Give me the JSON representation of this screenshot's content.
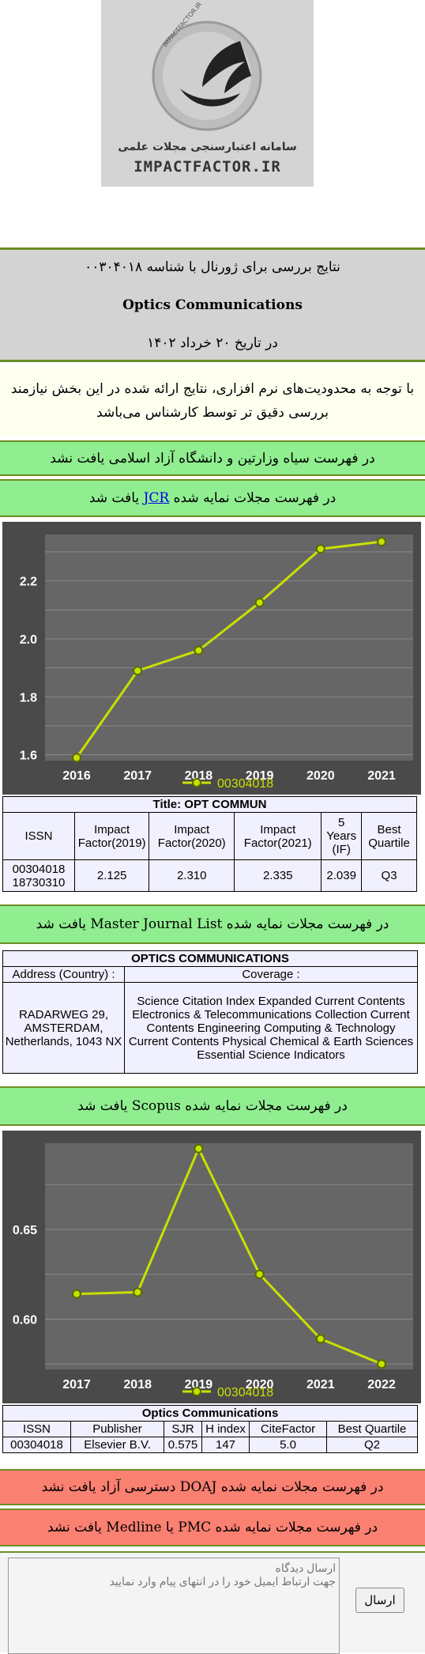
{
  "logo": {
    "circle_text": "IMPACTFACTOR.IR",
    "title": "سامانه اعتبارسنجی مجلات علمی",
    "subtitle": "IMPACTFACTOR.IR"
  },
  "header": {
    "line1": "نتایج بررسی برای ژورنال با شناسه ۰۰۳۰۴۰۱۸",
    "journal_name": "Optics Communications",
    "date_line": "در تاریخ ۲۰ خرداد ۱۴۰۲"
  },
  "warning": "با توجه به محدودیت‌های نرم افزاری، نتایج ارائه شده در این بخش نیازمند بررسی دقیق تر توسط کارشناس می‌باشد",
  "blacklist_status": "در فهرست سیاه وزارتین و دانشگاه آزاد اسلامی یافت نشد",
  "jcr_status": {
    "prefix": "در فهرست مجلات نمایه شده",
    "link": "JCR",
    "suffix": "یافت شد"
  },
  "jcr_chart": {
    "chart_data": {
      "type": "line",
      "x": [
        "2016",
        "2017",
        "2018",
        "2019",
        "2020",
        "2021"
      ],
      "series": [
        {
          "name": "00304018",
          "values": [
            1.59,
            1.89,
            1.96,
            2.125,
            2.31,
            2.335
          ]
        }
      ],
      "ylim": [
        1.58,
        2.36
      ],
      "yticks": [
        "1.6",
        "1.8",
        "2.0",
        "2.2"
      ],
      "legend": "bottom",
      "grid": true,
      "line_color": "#c8e000"
    }
  },
  "jcr_table": {
    "title": "Title: OPT COMMUN",
    "headers": [
      "ISSN",
      "Impact Factor(2019)",
      "Impact Factor(2020)",
      "Impact Factor(2021)",
      "5 Years (IF)",
      "Best Quartile"
    ],
    "issn1": "00304018",
    "issn2": "18730310",
    "if2019": "2.125",
    "if2020": "2.310",
    "if2021": "2.335",
    "if5": "2.039",
    "quartile": "Q3"
  },
  "mjl_status": "در فهرست مجلات نمایه شده Master Journal List یافت شد",
  "mjl_table": {
    "title": "OPTICS COMMUNICATIONS",
    "address_header": "Address (Country) :",
    "coverage_header": "Coverage :",
    "address": "RADARWEG 29, AMSTERDAM, Netherlands, 1043 NX",
    "coverage": "Science Citation Index Expanded Current Contents Electronics & Telecommunications Collection Current Contents Engineering Computing & Technology Current Contents Physical Chemical & Earth Sciences Essential Science Indicators"
  },
  "scopus_status": "در فهرست مجلات نمایه شده Scopus یافت شد",
  "scopus_chart": {
    "chart_data": {
      "type": "line",
      "x": [
        "2017",
        "2018",
        "2019",
        "2020",
        "2021",
        "2022"
      ],
      "series": [
        {
          "name": "00304018",
          "values": [
            0.614,
            0.615,
            0.695,
            0.625,
            0.589,
            0.575
          ]
        }
      ],
      "ylim": [
        0.572,
        0.698
      ],
      "yticks": [
        "0.60",
        "0.65"
      ],
      "legend": "bottom",
      "grid": true,
      "line_color": "#c8e000"
    }
  },
  "scopus_table": {
    "title": "Optics Communications",
    "headers": [
      "ISSN",
      "Publisher",
      "SJR",
      "H index",
      "CiteFactor",
      "Best Quartile"
    ],
    "issn": "00304018",
    "publisher": "Elsevier B.V.",
    "sjr": "0.575",
    "hindex": "147",
    "citefactor": "5.0",
    "quartile": "Q2"
  },
  "doaj_status": "در فهرست مجلات نمایه شده DOAJ دسترسی آزاد یافت نشد",
  "pmc_status": "در فهرست مجلات نمایه شده PMC یا Medline یافت نشد",
  "comment": {
    "placeholder": "ارسال دیدگاه\nجهت ارتباط ایمیل خود را در انتهای پیام وارد نمایید",
    "submit": "ارسال"
  }
}
